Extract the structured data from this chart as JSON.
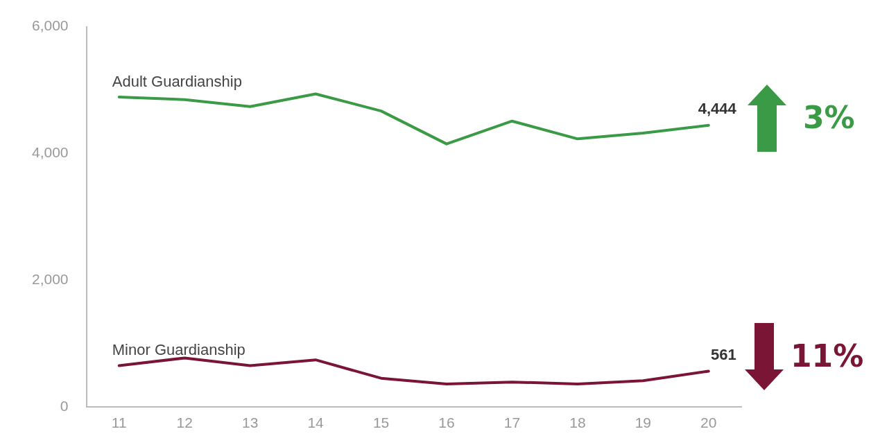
{
  "chart_data": {
    "type": "line",
    "categories": [
      "11",
      "12",
      "13",
      "14",
      "15",
      "16",
      "17",
      "18",
      "19",
      "20"
    ],
    "series": [
      {
        "name": "Adult Guardianship",
        "color": "#3a9a45",
        "values": [
          4890,
          4850,
          4740,
          4940,
          4670,
          4150,
          4510,
          4230,
          4320,
          4444
        ],
        "value_labels": [
          null,
          null,
          null,
          null,
          null,
          null,
          null,
          null,
          null,
          "4,444"
        ]
      },
      {
        "name": "Minor Guardianship",
        "color": "#7a1535",
        "values": [
          650,
          770,
          650,
          740,
          450,
          360,
          390,
          360,
          410,
          561
        ],
        "value_labels": [
          null,
          null,
          null,
          null,
          null,
          null,
          null,
          null,
          null,
          "561"
        ]
      }
    ],
    "ylim": [
      0,
      6000
    ],
    "yticks": [
      {
        "value": 0,
        "label": "0"
      },
      {
        "value": 2000,
        "label": "2,000"
      },
      {
        "value": 4000,
        "label": "4,000"
      },
      {
        "value": 6000,
        "label": "6,000"
      }
    ],
    "grid": false,
    "legend": false,
    "marker": "none",
    "line_style": "solid",
    "annotations": [
      "3%",
      "11%"
    ]
  }
}
